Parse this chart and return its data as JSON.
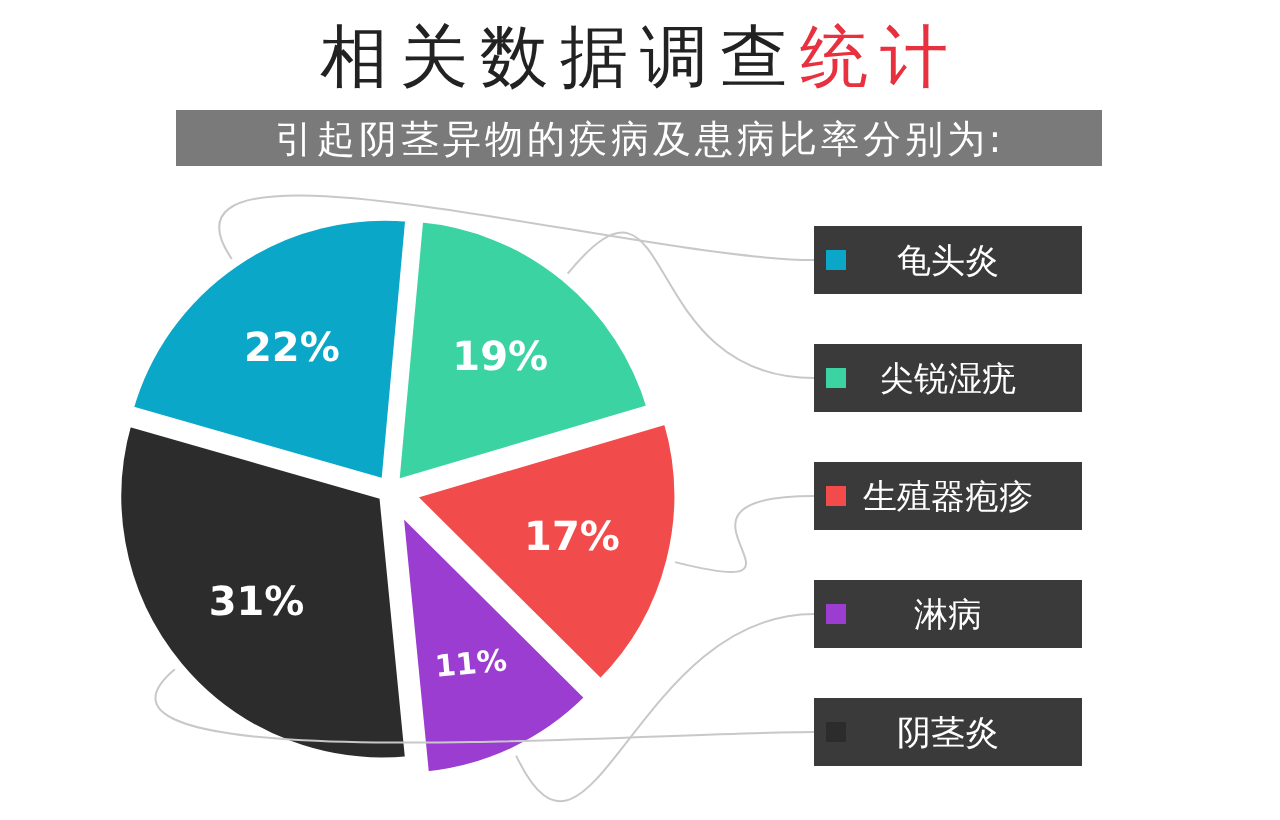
{
  "chart_data": {
    "type": "pie",
    "title": "相关数据调查统计",
    "subtitle": "引起阴茎异物的疾病及患病比率分别为:",
    "categories": [
      "龟头炎",
      "尖锐湿疣",
      "生殖器疱疹",
      "淋病",
      "阴茎炎"
    ],
    "values": [
      22,
      19,
      17,
      11,
      31
    ],
    "value_labels": [
      "22%",
      "19%",
      "17%",
      "11%",
      "31%"
    ],
    "colors": [
      "#0ba7c9",
      "#3ad3a1",
      "#f24b4b",
      "#9a3dd0",
      "#2c2c2c"
    ],
    "legend": "right"
  }
}
